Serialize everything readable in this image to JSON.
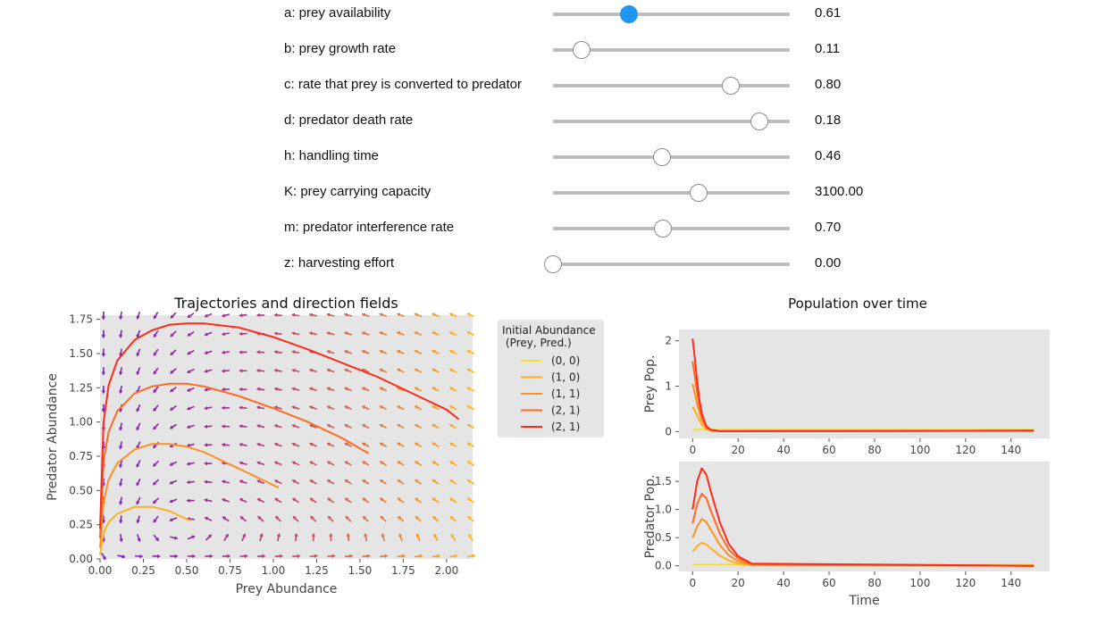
{
  "controls": [
    {
      "label": "a: prey availability",
      "value": "0.61",
      "fraction": 0.32,
      "active": true
    },
    {
      "label": "b: prey growth rate",
      "value": "0.11",
      "fraction": 0.12,
      "active": false
    },
    {
      "label": "c: rate that prey is converted to predator",
      "value": "0.80",
      "fraction": 0.75,
      "active": false
    },
    {
      "label": "d: predator death rate",
      "value": "0.18",
      "fraction": 0.87,
      "active": false
    },
    {
      "label": "h: handling time",
      "value": "0.46",
      "fraction": 0.46,
      "active": false
    },
    {
      "label": "K: prey carrying capacity",
      "value": "3100.00",
      "fraction": 0.615,
      "active": false
    },
    {
      "label": "m: predator interference rate",
      "value": "0.70",
      "fraction": 0.465,
      "active": false
    },
    {
      "label": "z: harvesting effort",
      "value": "0.00",
      "fraction": 0.0,
      "active": false
    }
  ],
  "chart_data": [
    {
      "type": "line",
      "title": "Trajectories and direction fields",
      "xlabel": "Prey Abundance",
      "ylabel": "Predator Abundance",
      "xlim": [
        0,
        2.15
      ],
      "ylim": [
        0,
        1.78
      ],
      "xticks": [
        "0.00",
        "0.25",
        "0.50",
        "0.75",
        "1.00",
        "1.25",
        "1.50",
        "1.75",
        "2.00"
      ],
      "yticks": [
        "0.00",
        "0.25",
        "0.50",
        "0.75",
        "1.00",
        "1.25",
        "1.50",
        "1.75"
      ],
      "grid": false,
      "background": "#e5e5e5",
      "legend": {
        "title": "Initial Abundance\n(Prey, Pred.)",
        "placement": "outside-right",
        "entries": [
          "(0, 0)",
          "(1, 0)",
          "(1, 1)",
          "(2, 1)",
          "(2, 1)"
        ]
      },
      "series": [
        {
          "name": "(0, 0)",
          "color": "#f5e030",
          "points": [
            [
              0.0,
              0.0
            ],
            [
              0.0,
              0.0
            ]
          ]
        },
        {
          "name": "(1, 0)",
          "color": "#ffb020",
          "points": [
            [
              0.0,
              0.03
            ],
            [
              0.02,
              0.19
            ],
            [
              0.05,
              0.27
            ],
            [
              0.1,
              0.33
            ],
            [
              0.2,
              0.38
            ],
            [
              0.3,
              0.38
            ],
            [
              0.4,
              0.35
            ],
            [
              0.5,
              0.29
            ],
            [
              0.52,
              0.28
            ]
          ]
        },
        {
          "name": "(1, 1)",
          "color": "#ff9020",
          "points": [
            [
              0.0,
              0.08
            ],
            [
              0.02,
              0.42
            ],
            [
              0.05,
              0.58
            ],
            [
              0.1,
              0.7
            ],
            [
              0.2,
              0.8
            ],
            [
              0.3,
              0.84
            ],
            [
              0.4,
              0.84
            ],
            [
              0.5,
              0.82
            ],
            [
              0.6,
              0.78
            ],
            [
              0.7,
              0.72
            ],
            [
              0.8,
              0.66
            ],
            [
              0.9,
              0.6
            ],
            [
              1.03,
              0.52
            ]
          ]
        },
        {
          "name": "(2, 1)",
          "color": "#ff6a20",
          "points": [
            [
              0.0,
              0.15
            ],
            [
              0.02,
              0.72
            ],
            [
              0.05,
              0.93
            ],
            [
              0.1,
              1.08
            ],
            [
              0.2,
              1.21
            ],
            [
              0.3,
              1.26
            ],
            [
              0.4,
              1.28
            ],
            [
              0.5,
              1.28
            ],
            [
              0.6,
              1.26
            ],
            [
              0.8,
              1.19
            ],
            [
              1.0,
              1.1
            ],
            [
              1.2,
              1.0
            ],
            [
              1.4,
              0.88
            ],
            [
              1.55,
              0.77
            ]
          ]
        },
        {
          "name": "(2, 1)",
          "color": "#ff2a1a",
          "points": [
            [
              0.0,
              0.22
            ],
            [
              0.02,
              1.0
            ],
            [
              0.05,
              1.27
            ],
            [
              0.1,
              1.45
            ],
            [
              0.2,
              1.6
            ],
            [
              0.3,
              1.67
            ],
            [
              0.4,
              1.71
            ],
            [
              0.5,
              1.72
            ],
            [
              0.6,
              1.72
            ],
            [
              0.8,
              1.69
            ],
            [
              1.0,
              1.62
            ],
            [
              1.2,
              1.53
            ],
            [
              1.4,
              1.43
            ],
            [
              1.6,
              1.33
            ],
            [
              1.8,
              1.21
            ],
            [
              2.0,
              1.09
            ],
            [
              2.07,
              1.02
            ]
          ]
        }
      ]
    },
    {
      "type": "line",
      "title": "Population over time",
      "ylabel": "Prey Pop.",
      "xlim": [
        -6,
        157
      ],
      "ylim": [
        -0.15,
        2.25
      ],
      "xticks": [
        "0",
        "20",
        "40",
        "60",
        "80",
        "100",
        "120",
        "140"
      ],
      "yticks": [
        "0",
        "1",
        "2"
      ],
      "background": "#e5e5e5",
      "series": [
        {
          "name": "(0, 0)",
          "color": "#f5e030",
          "points": [
            [
              0,
              0.04
            ],
            [
              150,
              0.04
            ]
          ]
        },
        {
          "name": "(1, 0)",
          "color": "#ffb020",
          "points": [
            [
              0,
              0.55
            ],
            [
              2,
              0.35
            ],
            [
              4,
              0.15
            ],
            [
              6,
              0.05
            ],
            [
              8,
              0.02
            ],
            [
              12,
              0.01
            ],
            [
              150,
              0.02
            ]
          ]
        },
        {
          "name": "(1, 1)",
          "color": "#ff9020",
          "points": [
            [
              0,
              1.05
            ],
            [
              2,
              0.6
            ],
            [
              4,
              0.25
            ],
            [
              6,
              0.08
            ],
            [
              8,
              0.03
            ],
            [
              12,
              0.01
            ],
            [
              150,
              0.02
            ]
          ]
        },
        {
          "name": "(2, 1)",
          "color": "#ff6a20",
          "points": [
            [
              0,
              1.55
            ],
            [
              2,
              0.85
            ],
            [
              4,
              0.32
            ],
            [
              6,
              0.1
            ],
            [
              8,
              0.03
            ],
            [
              12,
              0.01
            ],
            [
              150,
              0.02
            ]
          ]
        },
        {
          "name": "(2, 1)",
          "color": "#ff2a1a",
          "points": [
            [
              0,
              2.05
            ],
            [
              1,
              1.6
            ],
            [
              2,
              1.1
            ],
            [
              3,
              0.7
            ],
            [
              4,
              0.4
            ],
            [
              6,
              0.12
            ],
            [
              8,
              0.04
            ],
            [
              12,
              0.01
            ],
            [
              150,
              0.02
            ]
          ]
        }
      ]
    },
    {
      "type": "line",
      "xlabel": "Time",
      "ylabel": "Predator Pop.",
      "xlim": [
        -6,
        157
      ],
      "ylim": [
        -0.1,
        1.85
      ],
      "xticks": [
        "0",
        "20",
        "40",
        "60",
        "80",
        "100",
        "120",
        "140"
      ],
      "yticks": [
        "0.0",
        "0.5",
        "1.0",
        "1.5"
      ],
      "background": "#e5e5e5",
      "series": [
        {
          "name": "(0, 0)",
          "color": "#f5e030",
          "points": [
            [
              0,
              0.02
            ],
            [
              150,
              0.02
            ]
          ]
        },
        {
          "name": "(1, 0)",
          "color": "#ffb020",
          "points": [
            [
              0,
              0.25
            ],
            [
              2,
              0.35
            ],
            [
              4,
              0.41
            ],
            [
              6,
              0.38
            ],
            [
              8,
              0.31
            ],
            [
              12,
              0.18
            ],
            [
              16,
              0.09
            ],
            [
              20,
              0.04
            ],
            [
              26,
              0.01
            ],
            [
              150,
              0.0
            ]
          ]
        },
        {
          "name": "(1, 1)",
          "color": "#ff9020",
          "points": [
            [
              0,
              0.5
            ],
            [
              2,
              0.7
            ],
            [
              4,
              0.83
            ],
            [
              6,
              0.78
            ],
            [
              8,
              0.64
            ],
            [
              12,
              0.37
            ],
            [
              16,
              0.18
            ],
            [
              20,
              0.08
            ],
            [
              26,
              0.02
            ],
            [
              150,
              0.0
            ]
          ]
        },
        {
          "name": "(2, 1)",
          "color": "#ff6a20",
          "points": [
            [
              0,
              0.75
            ],
            [
              2,
              1.1
            ],
            [
              4,
              1.28
            ],
            [
              6,
              1.2
            ],
            [
              8,
              0.98
            ],
            [
              12,
              0.57
            ],
            [
              16,
              0.28
            ],
            [
              20,
              0.13
            ],
            [
              26,
              0.03
            ],
            [
              150,
              0.0
            ]
          ]
        },
        {
          "name": "(2, 1)",
          "color": "#ff2a1a",
          "points": [
            [
              0,
              1.0
            ],
            [
              2,
              1.5
            ],
            [
              4,
              1.73
            ],
            [
              6,
              1.62
            ],
            [
              8,
              1.32
            ],
            [
              12,
              0.77
            ],
            [
              16,
              0.38
            ],
            [
              20,
              0.17
            ],
            [
              26,
              0.04
            ],
            [
              150,
              0.0
            ]
          ]
        }
      ]
    }
  ]
}
